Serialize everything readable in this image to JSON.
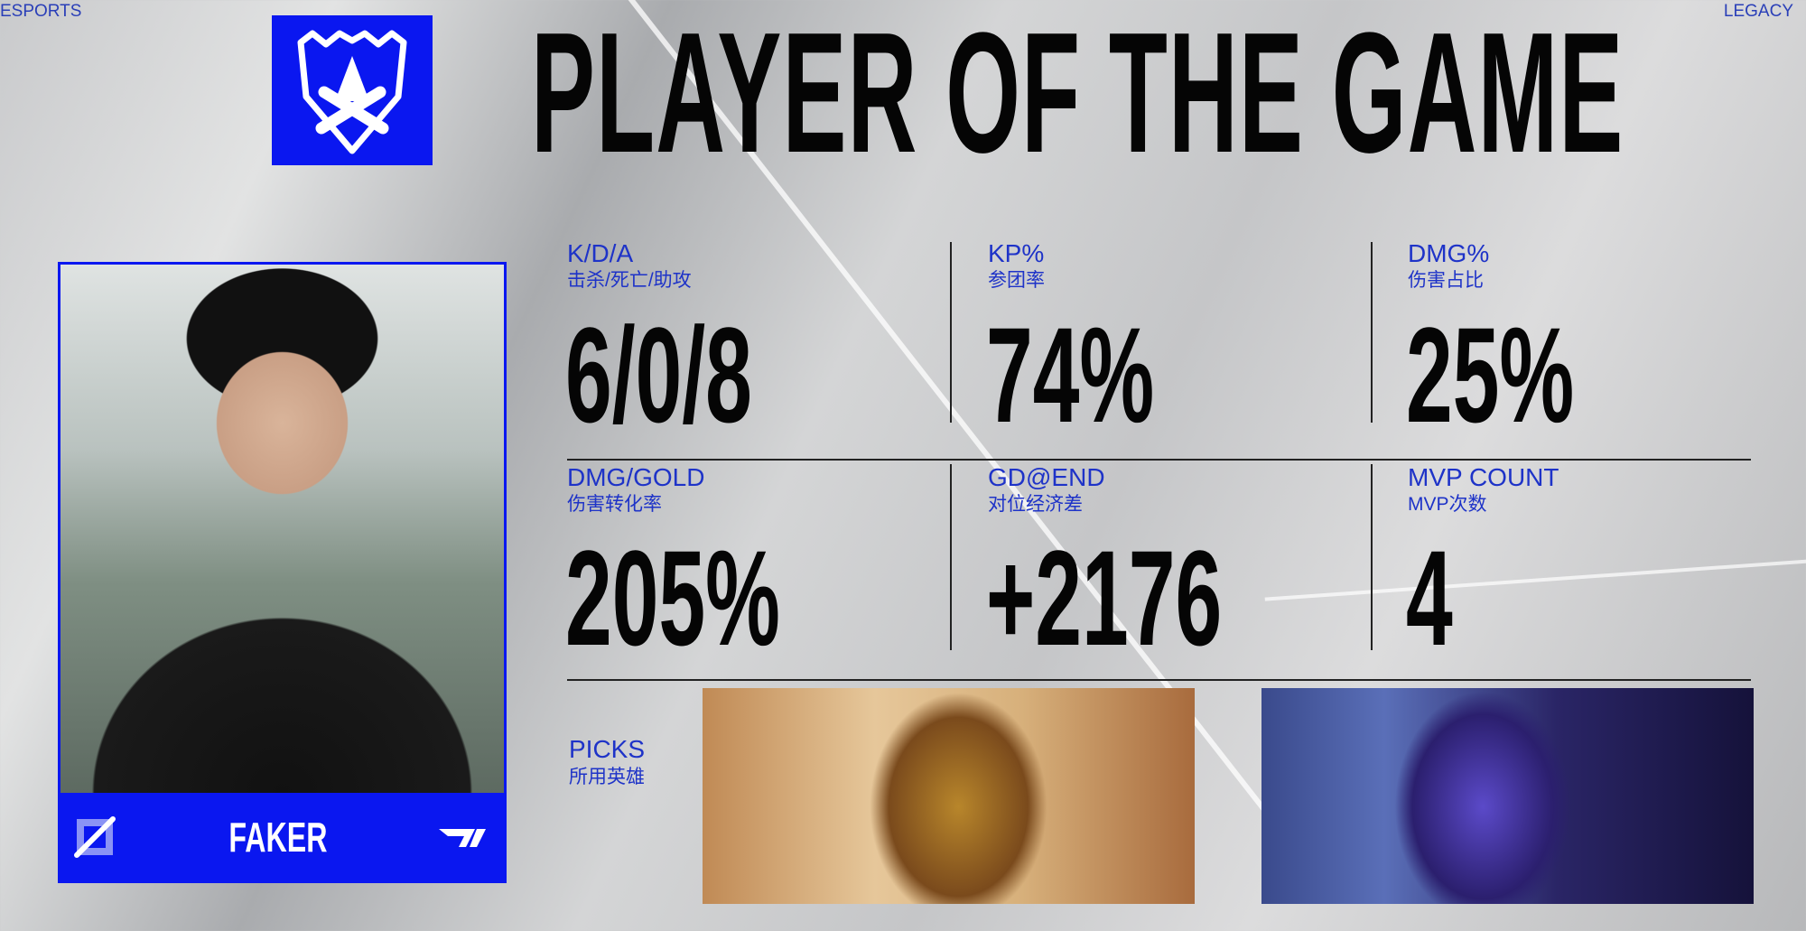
{
  "corners": {
    "left": "ESPORTS",
    "right": "LEGACY"
  },
  "header": {
    "title": "PLAYER OF THE GAME",
    "logo": "worlds-trophy-logo"
  },
  "player": {
    "name": "FAKER",
    "team_logo": "T1",
    "brand_color": "#0a17f0"
  },
  "stats": [
    {
      "label": "K/D/A",
      "sub": "击杀/死亡/助攻",
      "value": "6/0/8"
    },
    {
      "label": "KP%",
      "sub": "参团率",
      "value": "74%"
    },
    {
      "label": "DMG%",
      "sub": "伤害占比",
      "value": "25%"
    },
    {
      "label": "DMG/GOLD",
      "sub": "伤害转化率",
      "value": "205%"
    },
    {
      "label": "GD@END",
      "sub": "对位经济差",
      "value": "+2176"
    },
    {
      "label": "MVP COUNT",
      "sub": "MVP次数",
      "value": "4"
    }
  ],
  "picks": {
    "label": "PICKS",
    "sub": "所用英雄"
  }
}
